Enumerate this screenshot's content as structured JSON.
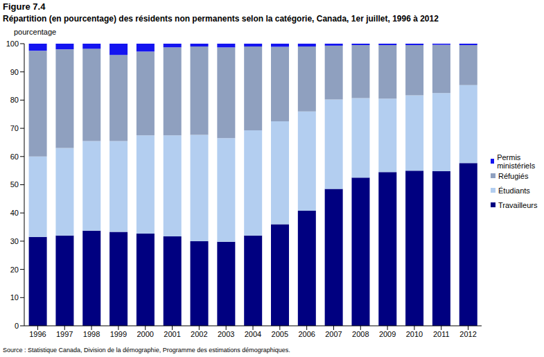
{
  "chart_data": {
    "type": "bar",
    "figure_label": "Figure 7.4",
    "title": "Répartition (en pourcentage) des résidents non permanents selon la catégorie, Canada, 1er juillet, 1996 à 2012",
    "y_label": "pourcentage",
    "source": "Source : Statistique Canada, Division de la démographie, Programme des estimations démographiques.",
    "stacked": true,
    "grid": false,
    "legend": "right",
    "categories": [
      "1996",
      "1997",
      "1998",
      "1999",
      "2000",
      "2001",
      "2002",
      "2003",
      "2004",
      "2005",
      "2006",
      "2007",
      "2008",
      "2009",
      "2010",
      "2011",
      "2012"
    ],
    "ylim": [
      0,
      100
    ],
    "yticks": [
      0,
      10,
      20,
      30,
      40,
      50,
      60,
      70,
      80,
      90,
      100
    ],
    "series": [
      {
        "name": "Travailleurs",
        "color": "#000080",
        "values": [
          31.5,
          32,
          33.7,
          33.3,
          32.7,
          31.7,
          30,
          29.8,
          32,
          36,
          40.8,
          48.5,
          52.5,
          54.5,
          55,
          54.8,
          57.7
        ]
      },
      {
        "name": "Étudiants",
        "color": "#b3cef0",
        "values": [
          28.5,
          31,
          31.8,
          32.2,
          34.8,
          35.8,
          37.7,
          36.7,
          37.3,
          36.5,
          35.2,
          31.7,
          28.2,
          26,
          26.7,
          27.7,
          27.6
        ]
      },
      {
        "name": "Réfugiés",
        "color": "#8fa0bf",
        "values": [
          37.5,
          35,
          32.7,
          30.5,
          29.7,
          31.2,
          31.3,
          32.2,
          29.7,
          26.4,
          23,
          19.1,
          18.8,
          19,
          17.8,
          17.1,
          14.2
        ]
      },
      {
        "name": "Permis ministériels",
        "color": "#1414f0",
        "values": [
          2.5,
          2,
          1.8,
          4,
          2.8,
          1.3,
          1,
          1.3,
          1,
          1.1,
          1,
          0.7,
          0.5,
          0.5,
          0.5,
          0.4,
          0.5
        ]
      }
    ]
  }
}
